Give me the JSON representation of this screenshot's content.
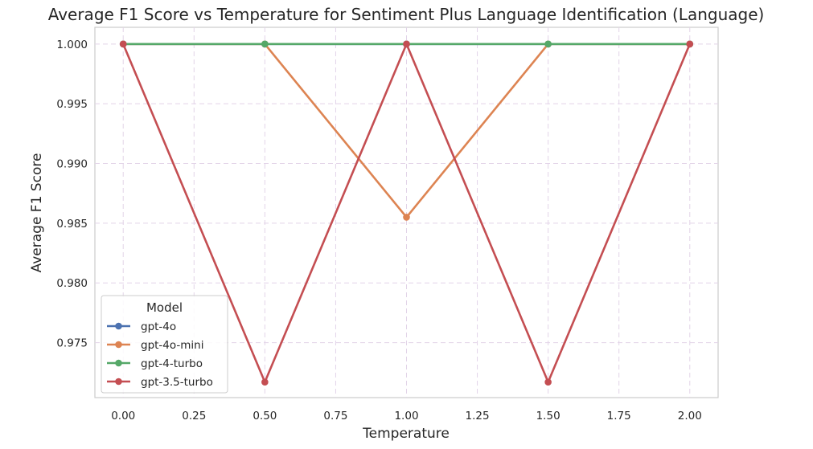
{
  "chart_data": {
    "type": "line",
    "title": "Average F1 Score vs Temperature for Sentiment Plus Language Identification (Language)",
    "xlabel": "Temperature",
    "ylabel": "Average F1 Score",
    "x": [
      0.0,
      0.5,
      1.0,
      1.5,
      2.0
    ],
    "xlim": [
      -0.1,
      2.1
    ],
    "ylim": [
      0.9704,
      1.0014
    ],
    "xticks": [
      0.0,
      0.25,
      0.5,
      0.75,
      1.0,
      1.25,
      1.5,
      1.75,
      2.0
    ],
    "xtick_labels": [
      "0.00",
      "0.25",
      "0.50",
      "0.75",
      "1.00",
      "1.25",
      "1.50",
      "1.75",
      "2.00"
    ],
    "yticks": [
      0.975,
      0.98,
      0.985,
      0.99,
      0.995,
      1.0
    ],
    "ytick_labels": [
      "0.975",
      "0.980",
      "0.985",
      "0.990",
      "0.995",
      "1.000"
    ],
    "grid": true,
    "legend_title": "Model",
    "legend_position": "lower-left",
    "series": [
      {
        "name": "gpt-4o",
        "color": "#4c72b0",
        "values": [
          1.0,
          1.0,
          1.0,
          1.0,
          1.0
        ]
      },
      {
        "name": "gpt-4o-mini",
        "color": "#dd8452",
        "values": [
          1.0,
          1.0,
          0.9855,
          1.0,
          1.0
        ]
      },
      {
        "name": "gpt-4-turbo",
        "color": "#55a868",
        "values": [
          1.0,
          1.0,
          1.0,
          1.0,
          1.0
        ]
      },
      {
        "name": "gpt-3.5-turbo",
        "color": "#c44e52",
        "values": [
          1.0,
          0.9717,
          1.0,
          0.9717,
          1.0
        ]
      }
    ]
  }
}
